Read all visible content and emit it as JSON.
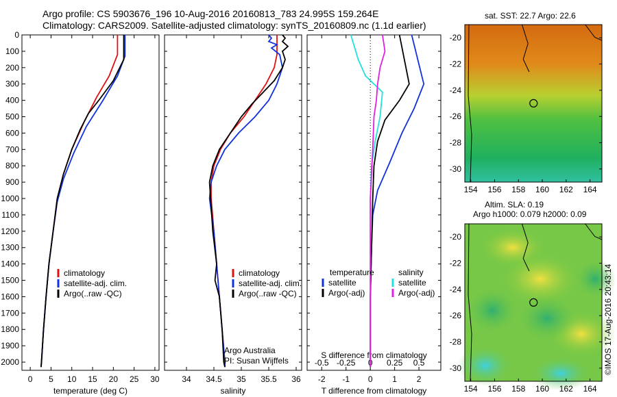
{
  "header": {
    "line1": "Argo profile: CS 5903676_196 10-Aug-2016 20160813_783 24.995S 159.264E",
    "line2": "Climatology: CARS2009. Satellite-adjusted climatology: synTS_20160809.nc (1.1d earlier)"
  },
  "credits": {
    "program": "Argo Australia",
    "pi": "PI: Susan Wijffels",
    "watermark": "©IMOS 17-Aug-2016 20:43:14"
  },
  "maps": {
    "sst_title": "sat. SST: 22.7 Argo: 22.6",
    "sla_title_1": "Altim. SLA: 0.19",
    "sla_title_2": "Argo h1000: 0.079 h2000: 0.09"
  },
  "chart_data": [
    {
      "type": "line",
      "id": "temperature",
      "xlabel": "temperature (deg C)",
      "ylabel": "",
      "xlim": [
        -2,
        31
      ],
      "ylim": [
        2050,
        0
      ],
      "x_ticks": [
        0,
        5,
        10,
        15,
        20,
        25,
        30
      ],
      "y_ticks": [
        0,
        100,
        200,
        300,
        400,
        500,
        600,
        700,
        800,
        900,
        1000,
        1100,
        1200,
        1300,
        1400,
        1500,
        1600,
        1700,
        1800,
        1900,
        2000
      ],
      "legend": [
        "climatology",
        "satellite-adj. clim.",
        "Argo(..raw -QC)"
      ],
      "series": [
        {
          "name": "climatology",
          "color": "#e01010",
          "points": [
            [
              21,
              0
            ],
            [
              21,
              120
            ],
            [
              19,
              250
            ],
            [
              16,
              380
            ],
            [
              13,
              530
            ],
            [
              10,
              700
            ],
            [
              8,
              850
            ],
            [
              6.5,
              1000
            ],
            [
              5.5,
              1200
            ],
            [
              4.5,
              1400
            ],
            [
              3.8,
              1600
            ],
            [
              3.2,
              1800
            ],
            [
              2.7,
              2000
            ],
            [
              2.6,
              2030
            ]
          ]
        },
        {
          "name": "satellite-adj. clim.",
          "color": "#1030e0",
          "points": [
            [
              22.8,
              0
            ],
            [
              22.8,
              130
            ],
            [
              21,
              250
            ],
            [
              17.5,
              400
            ],
            [
              13.5,
              560
            ],
            [
              10.5,
              720
            ],
            [
              8,
              880
            ],
            [
              6.5,
              1020
            ],
            [
              5.5,
              1200
            ],
            [
              4.5,
              1400
            ],
            [
              3.8,
              1600
            ],
            [
              3.2,
              1800
            ],
            [
              2.7,
              2000
            ],
            [
              2.6,
              2030
            ]
          ]
        },
        {
          "name": "Argo(..raw -QC)",
          "color": "#000000",
          "points": [
            [
              22.5,
              0
            ],
            [
              22.5,
              150
            ],
            [
              20,
              280
            ],
            [
              16.5,
              400
            ],
            [
              14,
              480
            ],
            [
              12,
              580
            ],
            [
              10,
              700
            ],
            [
              8,
              850
            ],
            [
              6.5,
              1000
            ],
            [
              5.5,
              1200
            ],
            [
              4.5,
              1400
            ],
            [
              3.8,
              1600
            ],
            [
              3.2,
              1800
            ],
            [
              2.7,
              2000
            ],
            [
              2.6,
              2030
            ]
          ]
        }
      ]
    },
    {
      "type": "line",
      "id": "salinity",
      "xlabel": "salinity",
      "ylabel": "",
      "xlim": [
        33.6,
        36.1
      ],
      "ylim": [
        2050,
        0
      ],
      "x_ticks": [
        34,
        34.5,
        35,
        35.5,
        36
      ],
      "legend": [
        "climatology",
        "satellite-adj. clim.",
        "Argo(..raw -QC)"
      ],
      "series": [
        {
          "name": "climatology",
          "color": "#e01010",
          "points": [
            [
              35.65,
              0
            ],
            [
              35.65,
              120
            ],
            [
              35.6,
              200
            ],
            [
              35.45,
              300
            ],
            [
              35.25,
              400
            ],
            [
              35.05,
              500
            ],
            [
              34.8,
              600
            ],
            [
              34.62,
              700
            ],
            [
              34.5,
              800
            ],
            [
              34.45,
              900
            ],
            [
              34.45,
              1000
            ],
            [
              34.5,
              1200
            ],
            [
              34.55,
              1400
            ],
            [
              34.6,
              1600
            ],
            [
              34.65,
              1800
            ],
            [
              34.7,
              2000
            ],
            [
              34.7,
              2030
            ]
          ]
        },
        {
          "name": "satellite-adj. clim.",
          "color": "#1030e0",
          "points": [
            [
              35.5,
              0
            ],
            [
              35.55,
              20
            ],
            [
              35.5,
              40
            ],
            [
              35.65,
              60
            ],
            [
              35.55,
              80
            ],
            [
              35.7,
              120
            ],
            [
              35.75,
              200
            ],
            [
              35.65,
              300
            ],
            [
              35.5,
              400
            ],
            [
              35.25,
              500
            ],
            [
              34.95,
              600
            ],
            [
              34.7,
              700
            ],
            [
              34.55,
              800
            ],
            [
              34.45,
              900
            ],
            [
              34.42,
              1000
            ],
            [
              34.5,
              1200
            ],
            [
              34.55,
              1400
            ],
            [
              34.6,
              1600
            ],
            [
              34.65,
              1800
            ],
            [
              34.7,
              2000
            ],
            [
              34.7,
              2030
            ]
          ]
        },
        {
          "name": "Argo(..raw -QC)",
          "color": "#000000",
          "points": [
            [
              35.75,
              0
            ],
            [
              35.8,
              20
            ],
            [
              35.75,
              40
            ],
            [
              35.85,
              70
            ],
            [
              35.75,
              100
            ],
            [
              35.8,
              150
            ],
            [
              35.75,
              200
            ],
            [
              35.6,
              280
            ],
            [
              35.4,
              350
            ],
            [
              35.2,
              420
            ],
            [
              35,
              500
            ],
            [
              34.8,
              600
            ],
            [
              34.6,
              700
            ],
            [
              34.48,
              800
            ],
            [
              34.42,
              900
            ],
            [
              34.44,
              1000
            ],
            [
              34.48,
              1200
            ],
            [
              34.55,
              1400
            ],
            [
              34.52,
              1500
            ],
            [
              34.6,
              1600
            ],
            [
              34.65,
              1800
            ],
            [
              34.68,
              2000
            ],
            [
              34.7,
              2030
            ]
          ]
        }
      ]
    },
    {
      "type": "line",
      "id": "difference",
      "xlabel": "T difference from climatology",
      "xlabel_top": "S difference from climatology",
      "ylabel": "",
      "xlim": [
        -2.6,
        2.9
      ],
      "ylim": [
        2050,
        0
      ],
      "x_ticks": [
        -2,
        -1,
        0,
        1,
        2
      ],
      "x_ticks_top": [
        -0.5,
        -0.25,
        0,
        0.25,
        0.5
      ],
      "legend_titles": [
        "temperature",
        "salinity"
      ],
      "legend": [
        "satellite",
        "Argo(-adj)",
        "satellite",
        "Argo(-adj)"
      ],
      "series": [
        {
          "name": "satellite",
          "group": "temperature",
          "color": "#1030e0",
          "points": [
            [
              1.7,
              0
            ],
            [
              2.2,
              300
            ],
            [
              1.8,
              450
            ],
            [
              1.3,
              600
            ],
            [
              0.8,
              780
            ],
            [
              0.3,
              950
            ],
            [
              0.1,
              1100
            ],
            [
              0.05,
              1300
            ],
            [
              0,
              1600
            ],
            [
              0,
              2030
            ]
          ]
        },
        {
          "name": "Argo(-adj)",
          "group": "temperature",
          "color": "#000000",
          "points": [
            [
              1.2,
              0
            ],
            [
              1.4,
              150
            ],
            [
              1.6,
              300
            ],
            [
              1.2,
              400
            ],
            [
              0.6,
              520
            ],
            [
              0.3,
              650
            ],
            [
              0.15,
              800
            ],
            [
              0.1,
              1000
            ],
            [
              0.05,
              1300
            ],
            [
              0,
              1600
            ],
            [
              0,
              2030
            ]
          ]
        },
        {
          "name": "satellite",
          "group": "salinity",
          "color": "#20e0e0",
          "points": [
            [
              -0.8,
              0
            ],
            [
              -0.5,
              150
            ],
            [
              -0.2,
              250
            ],
            [
              0.5,
              350
            ],
            [
              0.4,
              500
            ],
            [
              0.2,
              650
            ],
            [
              0.05,
              800
            ],
            [
              0,
              1000
            ],
            [
              0,
              1200
            ],
            [
              0,
              1500
            ],
            [
              0,
              2030
            ]
          ]
        },
        {
          "name": "Argo(-adj)",
          "group": "salinity",
          "color": "#e020e0",
          "points": [
            [
              0.5,
              0
            ],
            [
              0.6,
              100
            ],
            [
              0.4,
              200
            ],
            [
              0.3,
              300
            ],
            [
              0.25,
              400
            ],
            [
              0.15,
              500
            ],
            [
              0.1,
              700
            ],
            [
              0.05,
              850
            ],
            [
              0,
              1000
            ],
            [
              0,
              1200
            ],
            [
              0,
              2030
            ]
          ]
        }
      ]
    },
    {
      "type": "heatmap",
      "id": "sst_map",
      "title": "sat. SST: 22.7 Argo: 22.6",
      "xlim": [
        153.5,
        165
      ],
      "ylim": [
        -31,
        -19
      ],
      "x_ticks": [
        154,
        156,
        158,
        160,
        162,
        164
      ],
      "y_ticks": [
        -20,
        -22,
        -24,
        -26,
        -28,
        -30
      ],
      "argo_position": [
        159.264,
        -24.995
      ]
    },
    {
      "type": "heatmap",
      "id": "sla_map",
      "title": "Altim. SLA: 0.19",
      "xlim": [
        153.5,
        165
      ],
      "ylim": [
        -31,
        -19
      ],
      "x_ticks": [
        154,
        156,
        158,
        160,
        162,
        164
      ],
      "y_ticks": [
        -20,
        -22,
        -24,
        -26,
        -28,
        -30
      ],
      "argo_position": [
        159.264,
        -24.995
      ]
    }
  ]
}
